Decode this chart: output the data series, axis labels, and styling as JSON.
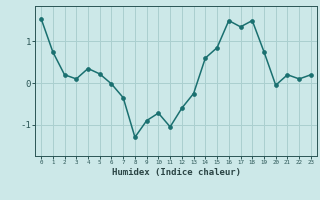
{
  "x": [
    0,
    1,
    2,
    3,
    4,
    5,
    6,
    7,
    8,
    9,
    10,
    11,
    12,
    13,
    14,
    15,
    16,
    17,
    18,
    19,
    20,
    21,
    22,
    23
  ],
  "y": [
    1.55,
    0.75,
    0.2,
    0.1,
    0.35,
    0.22,
    -0.02,
    -0.35,
    -1.3,
    -0.9,
    -0.72,
    -1.05,
    -0.6,
    -0.25,
    0.6,
    0.85,
    1.5,
    1.35,
    1.5,
    0.75,
    -0.05,
    0.2,
    0.1,
    0.2
  ],
  "line_color": "#1a7070",
  "marker_color": "#1a7070",
  "bg_color": "#cce8e8",
  "grid_color": "#aacfcf",
  "tick_label_color": "#2a5555",
  "xlabel": "Humidex (Indice chaleur)",
  "xlabel_color": "#2a4444",
  "yticks": [
    -1,
    0,
    1
  ],
  "ylim": [
    -1.75,
    1.85
  ],
  "xlim": [
    -0.5,
    23.5
  ],
  "figsize": [
    3.2,
    2.0
  ],
  "dpi": 100,
  "linewidth": 1.1,
  "markersize": 2.8
}
